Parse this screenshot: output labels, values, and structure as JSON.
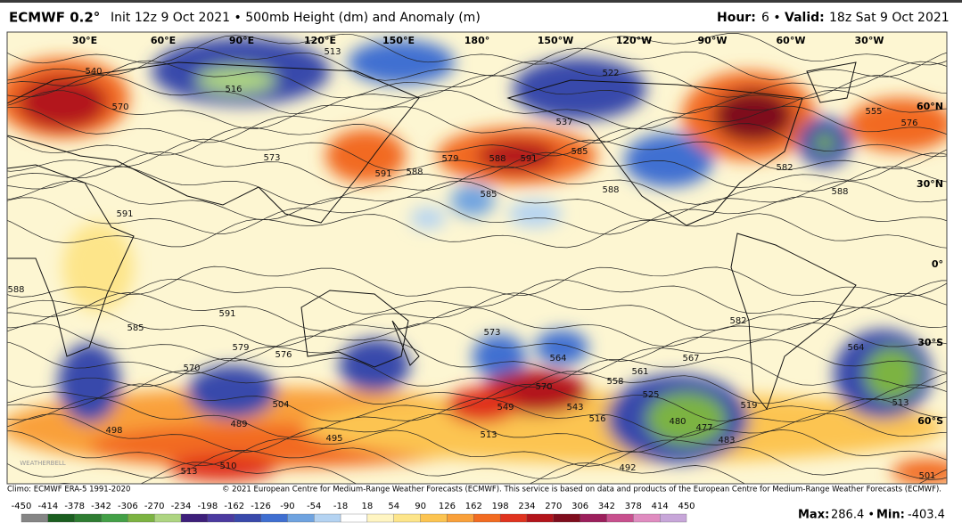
{
  "header": {
    "model": "ECMWF 0.2°",
    "description": "Init 12z 9 Oct 2021 • 500mb Height (dm) and Anomaly (m)",
    "hour_label": "Hour:",
    "hour": "6 •",
    "valid_label": "Valid:",
    "valid": "18z Sat 9 Oct 2021"
  },
  "map": {
    "lon_labels": [
      "30°E",
      "60°E",
      "90°E",
      "120°E",
      "150°E",
      "180°",
      "150°W",
      "120°W",
      "90°W",
      "60°W",
      "30°W"
    ],
    "lat_labels": [
      "60°N",
      "30°N",
      "0°",
      "30°S",
      "60°S"
    ],
    "contour_labels": [
      "540",
      "570",
      "516",
      "513",
      "573",
      "591",
      "588",
      "579",
      "588",
      "591",
      "585",
      "537",
      "522",
      "585",
      "588",
      "582",
      "588",
      "555",
      "576",
      "591",
      "588",
      "591",
      "585",
      "579",
      "576",
      "570",
      "582",
      "573",
      "564",
      "570",
      "549",
      "543",
      "558",
      "561",
      "567",
      "525",
      "480",
      "477",
      "483",
      "519",
      "564",
      "513",
      "498",
      "489",
      "504",
      "495",
      "513",
      "510",
      "513",
      "492",
      "501",
      "516"
    ],
    "watermark": "WEATHERBELL"
  },
  "footer": {
    "climo": "Climo: ECMWF ERA-5 1991-2020",
    "copyright": "© 2021 European Centre for Medium-Range Weather Forecasts (ECMWF). This service is based on data and products of the European Centre for Medium-Range Weather Forecasts (ECMWF)."
  },
  "colorbar": {
    "ticks": [
      -450,
      -414,
      -378,
      -342,
      -306,
      -270,
      -234,
      -198,
      -162,
      -126,
      -90,
      -54,
      -18,
      18,
      54,
      90,
      126,
      162,
      198,
      234,
      270,
      306,
      342,
      378,
      414,
      450
    ],
    "colors": [
      "#858585",
      "#1b5e20",
      "#2e7d32",
      "#43a047",
      "#7cb342",
      "#aed581",
      "#3d1f7a",
      "#4b3aa0",
      "#3949ab",
      "#3f6fd1",
      "#6fa3e0",
      "#b4d3f2",
      "#ffffff",
      "#fff5c2",
      "#fde58a",
      "#fcc451",
      "#f9a03a",
      "#f26b21",
      "#e0331f",
      "#b3141b",
      "#7f0d1d",
      "#9c1f5c",
      "#c8508e",
      "#e08cc0",
      "#c7a6d9"
    ]
  },
  "stats": {
    "max_label": "Max:",
    "max": "286.4 •",
    "min_label": "Min:",
    "min": "-403.4"
  }
}
